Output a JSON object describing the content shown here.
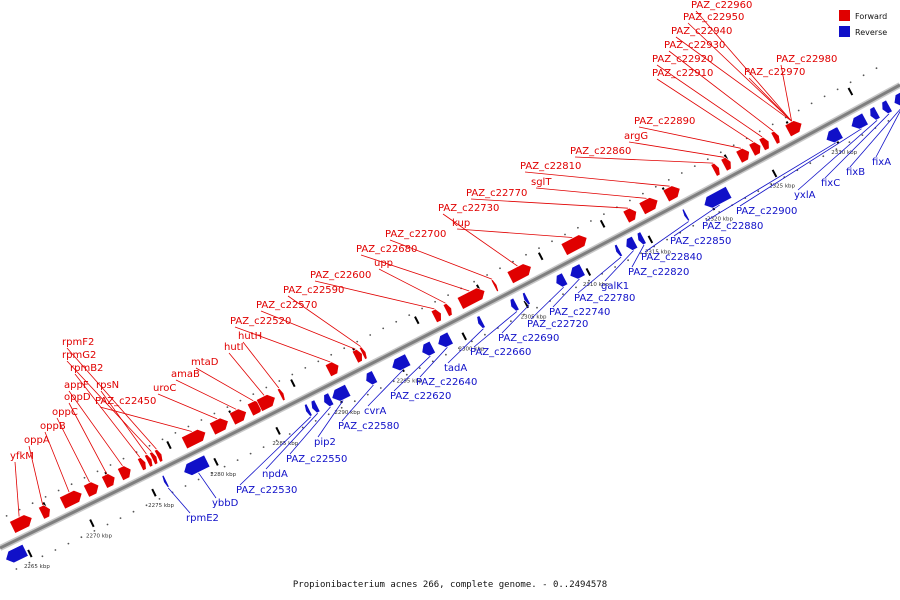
{
  "caption": "Propionibacterium acnes 266, complete genome. - 0..2494578",
  "legend": [
    {
      "label": "Forward",
      "color": "#e00000"
    },
    {
      "label": "Reverse",
      "color": "#1010c8"
    }
  ],
  "colors": {
    "forward": "#e00000",
    "reverse": "#1010c8",
    "backbone": "#7f7f7f",
    "leader_forward": "#e00000",
    "leader_reverse": "#1010c8"
  },
  "ticks": [
    "2265 kbp",
    "2270 kbp",
    "2275 kbp",
    "2280 kbp",
    "2285 kbp",
    "2290 kbp",
    "2295 kbp",
    "2300 kbp",
    "2305 kbp",
    "2310 kbp",
    "2315 kbp",
    "2320 kbp",
    "2325 kbp",
    "2330 kbp"
  ],
  "forward_labels": [
    "yfkM",
    "oppA",
    "oppB",
    "oppC",
    "oppD",
    "appF",
    "rpmB2",
    "rpsN",
    "rpmG2",
    "rpmF2",
    "PAZ_c22450",
    "uroC",
    "amaB",
    "mtaD",
    "hutI",
    "hutH",
    "PAZ_c22520",
    "PAZ_c22570",
    "PAZ_c22590",
    "PAZ_c22600",
    "upp",
    "PAZ_c22680",
    "PAZ_c22700",
    "PAZ_c22730",
    "kup",
    "PAZ_c22770",
    "sglT",
    "PAZ_c22810",
    "PAZ_c22860",
    "argG",
    "PAZ_c22890",
    "PAZ_c22910",
    "PAZ_c22920",
    "PAZ_c22930",
    "PAZ_c22940",
    "PAZ_c22950",
    "PAZ_c22960",
    "PAZ_c22970",
    "PAZ_c22980"
  ],
  "reverse_labels": [
    "rpmE2",
    "ybbD",
    "PAZ_c22530",
    "npdA",
    "PAZ_c22550",
    "pip2",
    "PAZ_c22580",
    "cvrA",
    "PAZ_c22620",
    "PAZ_c22640",
    "tadA",
    "PAZ_c22660",
    "PAZ_c22690",
    "PAZ_c22720",
    "PAZ_c22740",
    "PAZ_c22780",
    "galK1",
    "PAZ_c22820",
    "PAZ_c22840",
    "PAZ_c22850",
    "PAZ_c22880",
    "PAZ_c22900",
    "yxlA",
    "fixC",
    "fixB",
    "fixA"
  ]
}
